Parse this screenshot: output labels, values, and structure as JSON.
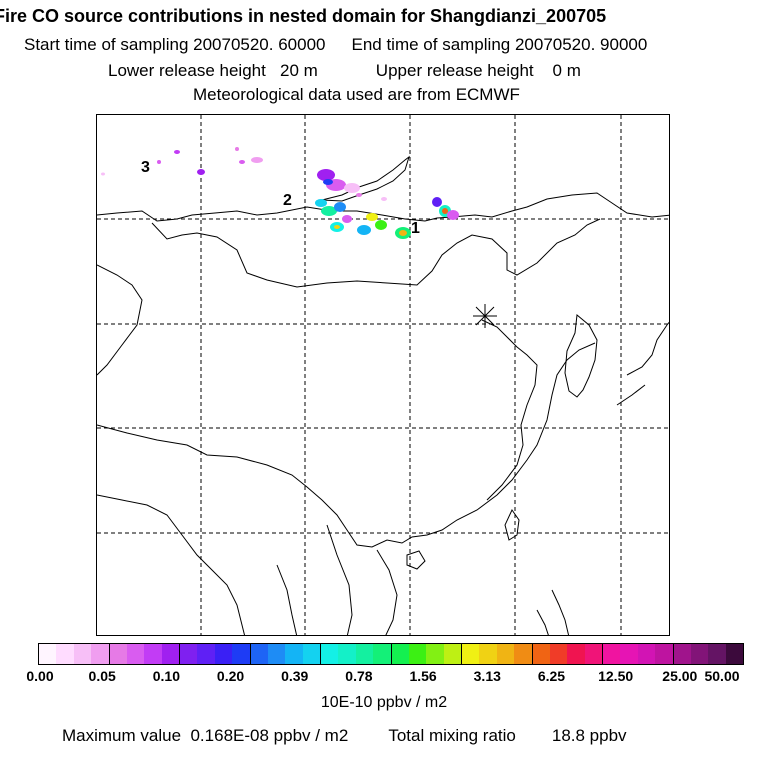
{
  "header": {
    "title": "Fire CO source contributions in nested domain for Shangdianzi_200705",
    "start_label": "Start time of sampling 20070520. 60000",
    "end_label": "End time of sampling 20070520. 90000",
    "lower_label": "Lower release height   20 m",
    "upper_label": "Upper release height    0 m",
    "met_label": "Meteorological data used are from ECMWF"
  },
  "map": {
    "region_labels": [
      "3",
      "2",
      "1"
    ],
    "receptor_marker": "asterisk-icon",
    "colors": {
      "coast": "#000000",
      "grid": "#000000",
      "background": "#ffffff"
    }
  },
  "colorbar": {
    "colors": [
      "#fff5ff",
      "#ffdcff",
      "#f7bff7",
      "#f09ef0",
      "#e67ae6",
      "#d95cf0",
      "#c23cf5",
      "#a020f0",
      "#7f20f0",
      "#5f20f5",
      "#3a20f5",
      "#1e3cf5",
      "#1e64f5",
      "#1e8cf5",
      "#14b4f5",
      "#14d2f0",
      "#14f0e6",
      "#14f0c8",
      "#14f0a0",
      "#14f078",
      "#14f050",
      "#3cf014",
      "#82f014",
      "#bef014",
      "#f0f014",
      "#f0d214",
      "#f0b414",
      "#f08c14",
      "#f06414",
      "#f03c28",
      "#f01450",
      "#f01478",
      "#f014a0",
      "#e614b4",
      "#d214b4",
      "#be14a0",
      "#a0148c",
      "#821478",
      "#641464",
      "#3c0a3c"
    ],
    "tick_labels": [
      "0.00",
      "0.05",
      "0.10",
      "0.20",
      "0.39",
      "0.78",
      "1.56",
      "3.13",
      "6.25",
      "12.50",
      "25.00",
      "50.00"
    ]
  },
  "unit_label": "10E-10 ppbv / m2",
  "footer": {
    "max_label": "Maximum value  0.168E-08 ppbv / m2",
    "total_label": "Total mixing ratio",
    "total_value": "18.8 ppbv"
  }
}
